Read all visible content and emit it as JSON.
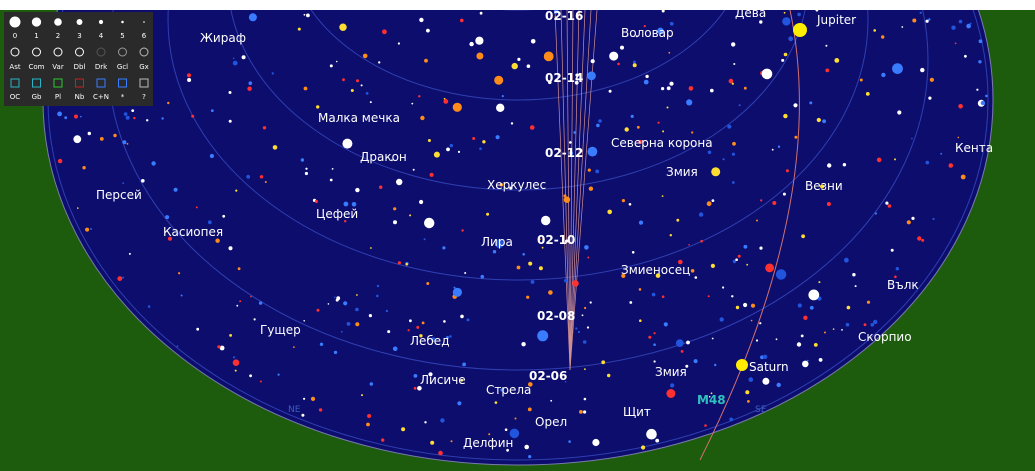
{
  "legend": {
    "magnitudes": [
      "0",
      "1",
      "2",
      "3",
      "4",
      "5",
      "6"
    ],
    "types_row1": [
      "Ast",
      "Com",
      "Var",
      "Dbl",
      "Drk",
      "Gcl",
      "Gx"
    ],
    "types_row2": [
      "OC",
      "Gb",
      "Pl",
      "Nb",
      "C+N",
      "*",
      "?"
    ]
  },
  "constellations": [
    "Жираф",
    "Малка мечка",
    "Дракон",
    "Персей",
    "Касиопея",
    "Цефей",
    "Херкулес",
    "Лира",
    "Гущер",
    "Лебед",
    "Лисиче",
    "Стрела",
    "Орел",
    "Делфин",
    "Воловар",
    "Северна корона",
    "Змия",
    "Змиеносец",
    "Змия",
    "Щит",
    "Везни",
    "Кента",
    "Вълк",
    "Скорпио",
    "Дева"
  ],
  "planets": [
    "Jupiter",
    "Saturn"
  ],
  "objects": [
    "M48"
  ],
  "times": [
    "02-16",
    "02-14",
    "02-12",
    "02-10",
    "02-08",
    "02-06"
  ],
  "directions": [
    "NE",
    "SE"
  ]
}
